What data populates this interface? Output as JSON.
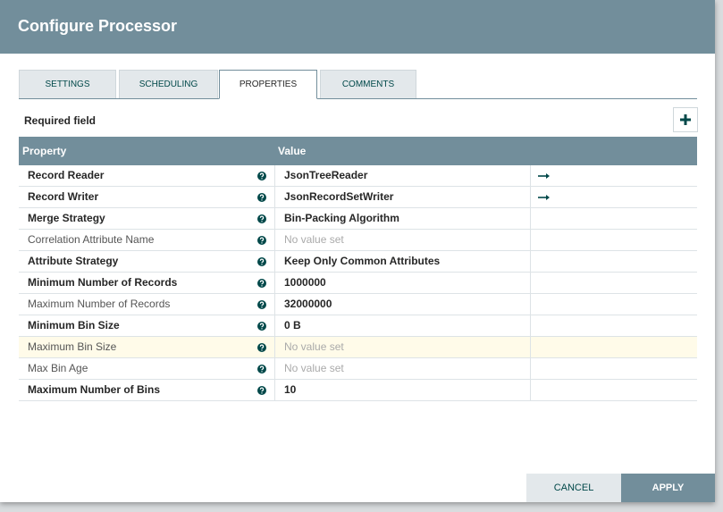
{
  "header": {
    "title": "Configure Processor"
  },
  "tabs": [
    {
      "label": "SETTINGS",
      "active": false
    },
    {
      "label": "SCHEDULING",
      "active": false
    },
    {
      "label": "PROPERTIES",
      "active": true
    },
    {
      "label": "COMMENTS",
      "active": false
    }
  ],
  "required_field": "Required field",
  "table": {
    "columns": [
      "Property",
      "Value"
    ],
    "rows": [
      {
        "property": "Record Reader",
        "value": "JsonTreeReader",
        "required": true,
        "set": true,
        "link": true,
        "highlighted": false
      },
      {
        "property": "Record Writer",
        "value": "JsonRecordSetWriter",
        "required": true,
        "set": true,
        "link": true,
        "highlighted": false
      },
      {
        "property": "Merge Strategy",
        "value": "Bin-Packing Algorithm",
        "required": true,
        "set": true,
        "link": false,
        "highlighted": false
      },
      {
        "property": "Correlation Attribute Name",
        "value": "No value set",
        "required": false,
        "set": false,
        "link": false,
        "highlighted": false
      },
      {
        "property": "Attribute Strategy",
        "value": "Keep Only Common Attributes",
        "required": true,
        "set": true,
        "link": false,
        "highlighted": false
      },
      {
        "property": "Minimum Number of Records",
        "value": "1000000",
        "required": true,
        "set": true,
        "link": false,
        "highlighted": false
      },
      {
        "property": "Maximum Number of Records",
        "value": "32000000",
        "required": false,
        "set": true,
        "link": false,
        "highlighted": false
      },
      {
        "property": "Minimum Bin Size",
        "value": "0 B",
        "required": true,
        "set": true,
        "link": false,
        "highlighted": false
      },
      {
        "property": "Maximum Bin Size",
        "value": "No value set",
        "required": false,
        "set": false,
        "link": false,
        "highlighted": true
      },
      {
        "property": "Max Bin Age",
        "value": "No value set",
        "required": false,
        "set": false,
        "link": false,
        "highlighted": false
      },
      {
        "property": "Maximum Number of Bins",
        "value": "10",
        "required": true,
        "set": true,
        "link": false,
        "highlighted": false
      }
    ]
  },
  "buttons": {
    "cancel": "CANCEL",
    "apply": "APPLY"
  }
}
